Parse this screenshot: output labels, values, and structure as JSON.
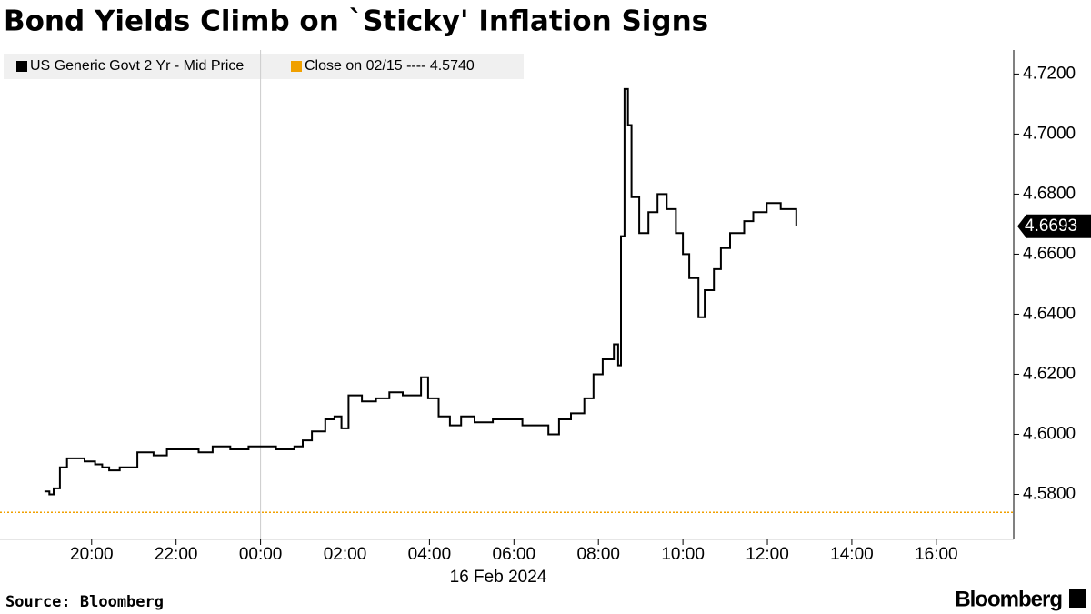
{
  "chart_data": {
    "type": "line",
    "title": "Bond Yields Climb on `Sticky' Inflation Signs",
    "x_date_label": "16 Feb 2024",
    "source": "Source: Bloomberg",
    "brand": "Bloomberg",
    "xlim": [
      "17:55",
      "17:50"
    ],
    "xticks": [
      "20:00",
      "22:00",
      "00:00",
      "02:00",
      "04:00",
      "06:00",
      "08:00",
      "10:00",
      "12:00",
      "14:00",
      "16:00"
    ],
    "ylim": [
      4.565,
      4.728
    ],
    "yticks": [
      {
        "value": 4.58,
        "label": "4.5800"
      },
      {
        "value": 4.6,
        "label": "4.6000"
      },
      {
        "value": 4.62,
        "label": "4.6200"
      },
      {
        "value": 4.64,
        "label": "4.6400"
      },
      {
        "value": 4.66,
        "label": "4.6600"
      },
      {
        "value": 4.68,
        "label": "4.6800"
      },
      {
        "value": 4.7,
        "label": "4.7000"
      },
      {
        "value": 4.72,
        "label": "4.7200"
      }
    ],
    "x": [
      "18:53",
      "19:00",
      "19:06",
      "19:15",
      "19:25",
      "19:40",
      "19:50",
      "20:05",
      "20:15",
      "20:25",
      "20:40",
      "21:05",
      "21:28",
      "21:47",
      "22:13",
      "22:32",
      "22:52",
      "23:17",
      "23:43",
      "00:22",
      "00:48",
      "01:00",
      "01:13",
      "01:32",
      "01:45",
      "01:55",
      "02:05",
      "02:24",
      "02:44",
      "03:03",
      "03:22",
      "03:48",
      "03:58",
      "04:13",
      "04:29",
      "04:45",
      "05:04",
      "05:30",
      "05:57",
      "06:12",
      "06:29",
      "06:49",
      "07:04",
      "07:21",
      "07:40",
      "07:53",
      "08:06",
      "08:22",
      "08:28",
      "08:32",
      "08:37",
      "08:42",
      "08:47",
      "08:58",
      "09:11",
      "09:24",
      "09:37",
      "09:50",
      "10:00",
      "10:09",
      "10:22",
      "10:31",
      "10:44",
      "10:54",
      "11:07",
      "11:27",
      "11:40",
      "11:59",
      "12:19",
      "12:32",
      "12:41"
    ],
    "series": [
      {
        "name": "US Generic Govt 2 Yr - Mid Price",
        "color": "#000000",
        "values": [
          4.581,
          4.58,
          4.582,
          4.589,
          4.592,
          4.592,
          4.591,
          4.59,
          4.589,
          4.588,
          4.589,
          4.594,
          4.593,
          4.595,
          4.595,
          4.594,
          4.596,
          4.595,
          4.596,
          4.595,
          4.596,
          4.598,
          4.601,
          4.605,
          4.606,
          4.602,
          4.613,
          4.611,
          4.612,
          4.614,
          4.613,
          4.619,
          4.612,
          4.606,
          4.603,
          4.606,
          4.604,
          4.605,
          4.605,
          4.603,
          4.603,
          4.6,
          4.605,
          4.607,
          4.612,
          4.62,
          4.625,
          4.63,
          4.623,
          4.666,
          4.715,
          4.703,
          4.679,
          4.667,
          4.674,
          4.68,
          4.675,
          4.667,
          4.66,
          4.652,
          4.639,
          4.648,
          4.655,
          4.662,
          4.667,
          4.671,
          4.674,
          4.677,
          4.675,
          4.675,
          4.6693
        ]
      }
    ],
    "current_value": {
      "value": 4.6693,
      "label": "4.6693"
    },
    "reference_line": {
      "name": "Close on 02/15 ---- 4.5740",
      "value": 4.574,
      "color": "#f0a000"
    }
  }
}
